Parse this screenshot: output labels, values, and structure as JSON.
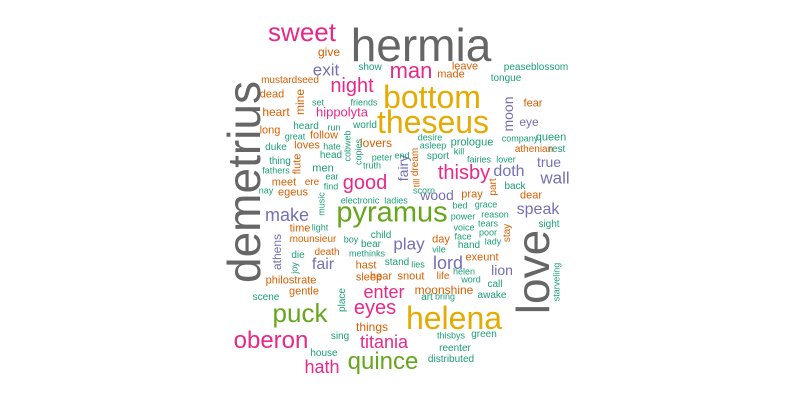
{
  "palette": {
    "gray": "#666666",
    "pink": "#e7298a",
    "gold": "#e6ab02",
    "green": "#66a61e",
    "orange": "#d95f02",
    "purple": "#7570b3",
    "teal": "#1b9e77",
    "brown": "#a6761d"
  },
  "words": [
    "hermia",
    "demetrius",
    "love",
    "bottom",
    "theseus",
    "helena",
    "pyramus",
    "sweet",
    "puck",
    "oberon",
    "quince",
    "titania",
    "man",
    "night",
    "good",
    "thisby",
    "eyes",
    "enter",
    "lord",
    "make",
    "play",
    "exit",
    "wall",
    "speak",
    "fair",
    "hath",
    "doth",
    "hippolyta",
    "wood",
    "lion",
    "fairy",
    "true",
    "moon",
    "eye",
    "give",
    "leave",
    "made",
    "show",
    "mine",
    "heart",
    "dead",
    "mustardseed",
    "peaseblossom",
    "tongue",
    "fear",
    "long",
    "follow",
    "lovers",
    "queen",
    "company",
    "prologue",
    "athenian",
    "rest",
    "loves",
    "duke",
    "men",
    "sport",
    "dear",
    "back",
    "meet",
    "egeus",
    "flute",
    "pray",
    "time",
    "day",
    "athens",
    "death",
    "exeunt",
    "moonshine",
    "hast",
    "sleep",
    "hear",
    "snout",
    "life",
    "helen",
    "word",
    "call",
    "gentle",
    "art",
    "bring",
    "awake",
    "starveling",
    "scene",
    "place",
    "things",
    "sing",
    "green",
    "house",
    "reenter",
    "distributed",
    "thisbys",
    "philostrate",
    "mounsieur",
    "methinks",
    "stand",
    "lies",
    "child",
    "bear",
    "boy",
    "sight",
    "stay",
    "hand",
    "lady",
    "poor",
    "face",
    "voice",
    "tears",
    "reason",
    "power",
    "grace",
    "bed",
    "part",
    "dream",
    "till",
    "kill",
    "fairies",
    "lover",
    "electronic",
    "ladies",
    "scorn",
    "music",
    "truth",
    "ear",
    "find",
    "peter",
    "end",
    "asleep",
    "desire",
    "world",
    "run",
    "cobweb",
    "copies",
    "heard",
    "great",
    "fathers",
    "thing",
    "hate",
    "head",
    "nay",
    "light",
    "set",
    "friends",
    "die",
    "joy",
    "ere",
    "vile"
  ]
}
